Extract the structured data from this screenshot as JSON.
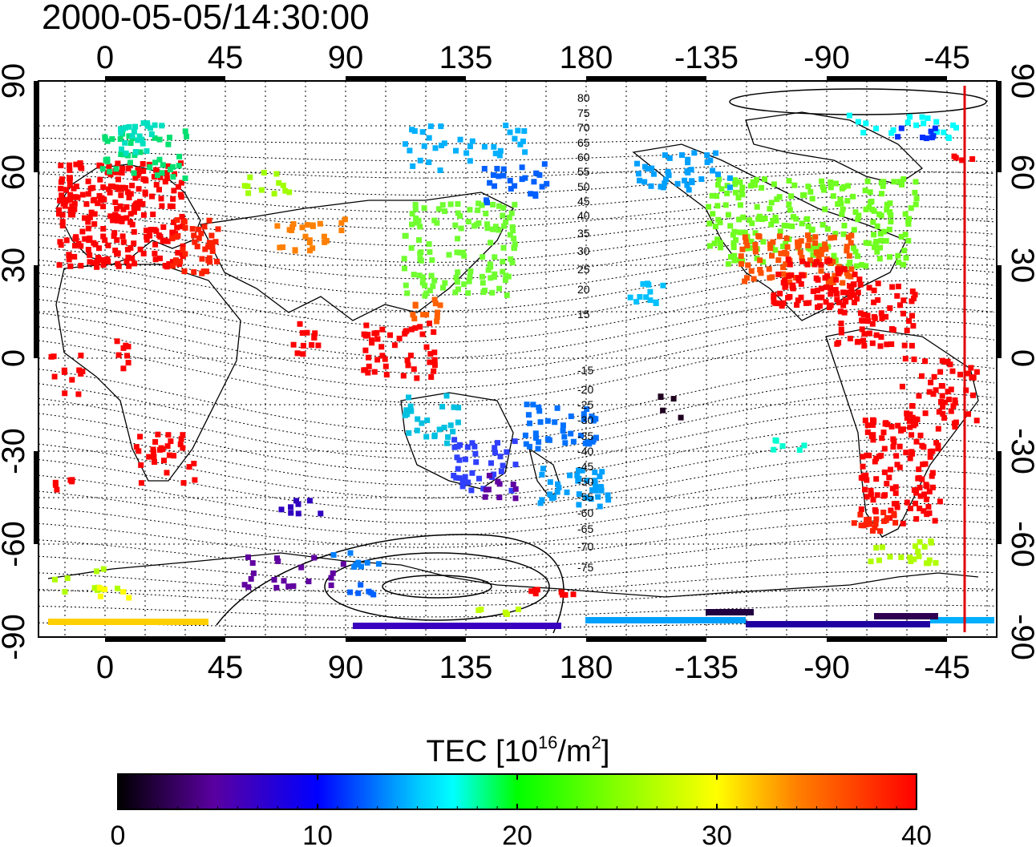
{
  "title": "2000-05-05/14:30:00",
  "map": {
    "top_axis_labels": [
      "0",
      "45",
      "90",
      "135",
      "180",
      "-135",
      "-90",
      "-45"
    ],
    "bottom_axis_labels": [
      "0",
      "45",
      "90",
      "135",
      "180",
      "-135",
      "-90",
      "-45"
    ],
    "left_axis_labels": [
      "90",
      "60",
      "30",
      "0",
      "-30",
      "-60",
      "-90"
    ],
    "right_axis_labels": [
      "90",
      "60",
      "30",
      "0",
      "-30",
      "-60",
      "-90"
    ],
    "contour_labels_north": [
      "80",
      "75",
      "70",
      "65",
      "60",
      "55",
      "50",
      "45",
      "40",
      "35",
      "30",
      "25",
      "20",
      "15"
    ],
    "contour_labels_south": [
      "-15",
      "-20",
      "-25",
      "-30",
      "-35",
      "-40",
      "-45",
      "-50",
      "-55",
      "-60",
      "-65",
      "-70",
      "-75"
    ],
    "colors": {
      "frame": "#000000",
      "marker_line": "#e00000"
    }
  },
  "colorbar": {
    "label_main": "TEC  [10",
    "label_exp1": "16",
    "label_mid": "/m",
    "label_exp2": "2",
    "label_end": "]",
    "ticks": [
      "0",
      "10",
      "20",
      "30",
      "40"
    ],
    "colors": [
      "#000000",
      "#5a00a0",
      "#0000ff",
      "#00ffff",
      "#00ff00",
      "#ffff00",
      "#ff8000",
      "#ff0000"
    ]
  }
}
